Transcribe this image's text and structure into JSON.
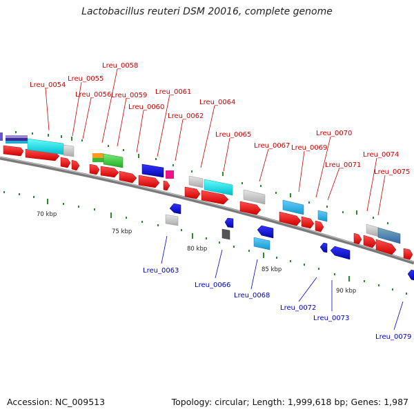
{
  "title": "Lactobacillus reuteri DSM 20016, complete genome",
  "footer": {
    "accession": "Accession: NC_009513",
    "topology": "Topology: circular; Length: 1,999,618 bp; Genes: 1,987"
  },
  "scale_ticks": [
    "70 kbp",
    "75 kbp",
    "80 kbp",
    "85 kbp",
    "90 kbp"
  ],
  "gene_labels_top": [
    "Lreu_0054",
    "Lreu_0055",
    "Lreu_0056",
    "Lreu_0058",
    "Lreu_0059",
    "Lreu_0060",
    "Lreu_0061",
    "Lreu_0062",
    "Lreu_0064",
    "Lreu_0065",
    "Lreu_0067",
    "Lreu_0069",
    "Lreu_0070",
    "Lreu_0071",
    "Lreu_0074",
    "Lreu_0075"
  ],
  "gene_labels_bottom": [
    "Lreu_0063",
    "Lreu_0066",
    "Lreu_0068",
    "Lreu_0072",
    "Lreu_0073",
    "Lreu_0079"
  ],
  "colors": {
    "forward_label": "#cc0000",
    "reverse_label": "#0000cc",
    "cds": "#ee1111",
    "backbone": "#808080",
    "tick_mark": "#2a8a2a"
  }
}
